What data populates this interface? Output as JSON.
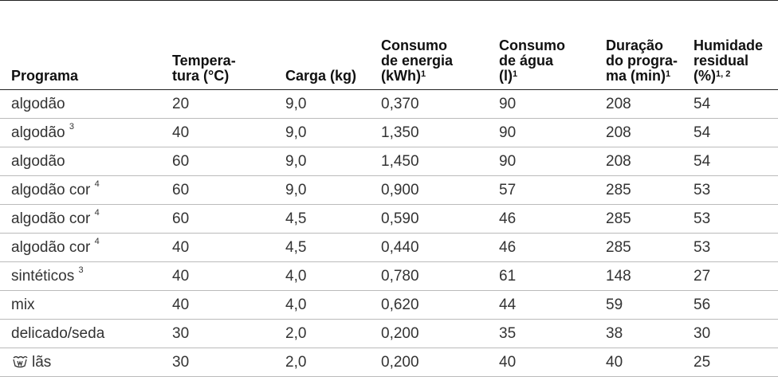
{
  "table": {
    "header": [
      {
        "lines": [
          "Programa"
        ]
      },
      {
        "lines": [
          "Tempera-",
          "tura (°C)"
        ]
      },
      {
        "lines": [
          "Carga (kg)"
        ]
      },
      {
        "lines": [
          "Consumo",
          "de energia",
          "(kWh)"
        ],
        "sup": "1"
      },
      {
        "lines": [
          "Consumo",
          "de água",
          "(l)"
        ],
        "sup": "1"
      },
      {
        "lines": [
          "Duração",
          "do progra-",
          "ma (min)"
        ],
        "sup": "1"
      },
      {
        "lines": [
          "Humidade",
          "residual",
          "(%)"
        ],
        "sup": "1, 2"
      }
    ],
    "rows": [
      [
        {
          "name": "algodão"
        },
        "20",
        "9,0",
        "0,370",
        "90",
        "208",
        "54"
      ],
      [
        {
          "name": "algodão",
          "sup": "3"
        },
        "40",
        "9,0",
        "1,350",
        "90",
        "208",
        "54"
      ],
      [
        {
          "name": "algodão"
        },
        "60",
        "9,0",
        "1,450",
        "90",
        "208",
        "54"
      ],
      [
        {
          "name": "algodão cor",
          "sup": "4"
        },
        "60",
        "9,0",
        "0,900",
        "57",
        "285",
        "53"
      ],
      [
        {
          "name": "algodão cor",
          "sup": "4"
        },
        "60",
        "4,5",
        "0,590",
        "46",
        "285",
        "53"
      ],
      [
        {
          "name": "algodão cor",
          "sup": "4"
        },
        "40",
        "4,5",
        "0,440",
        "46",
        "285",
        "53"
      ],
      [
        {
          "name": "sintéticos",
          "sup": "3"
        },
        "40",
        "4,0",
        "0,780",
        "61",
        "148",
        "27"
      ],
      [
        {
          "name": "mix"
        },
        "40",
        "4,0",
        "0,620",
        "44",
        "59",
        "56"
      ],
      [
        {
          "name": "delicado/seda"
        },
        "30",
        "2,0",
        "0,200",
        "35",
        "38",
        "30"
      ],
      [
        {
          "name": "lãs"
        },
        "30",
        "2,0",
        "0,200",
        "40",
        "40",
        "25"
      ]
    ]
  }
}
